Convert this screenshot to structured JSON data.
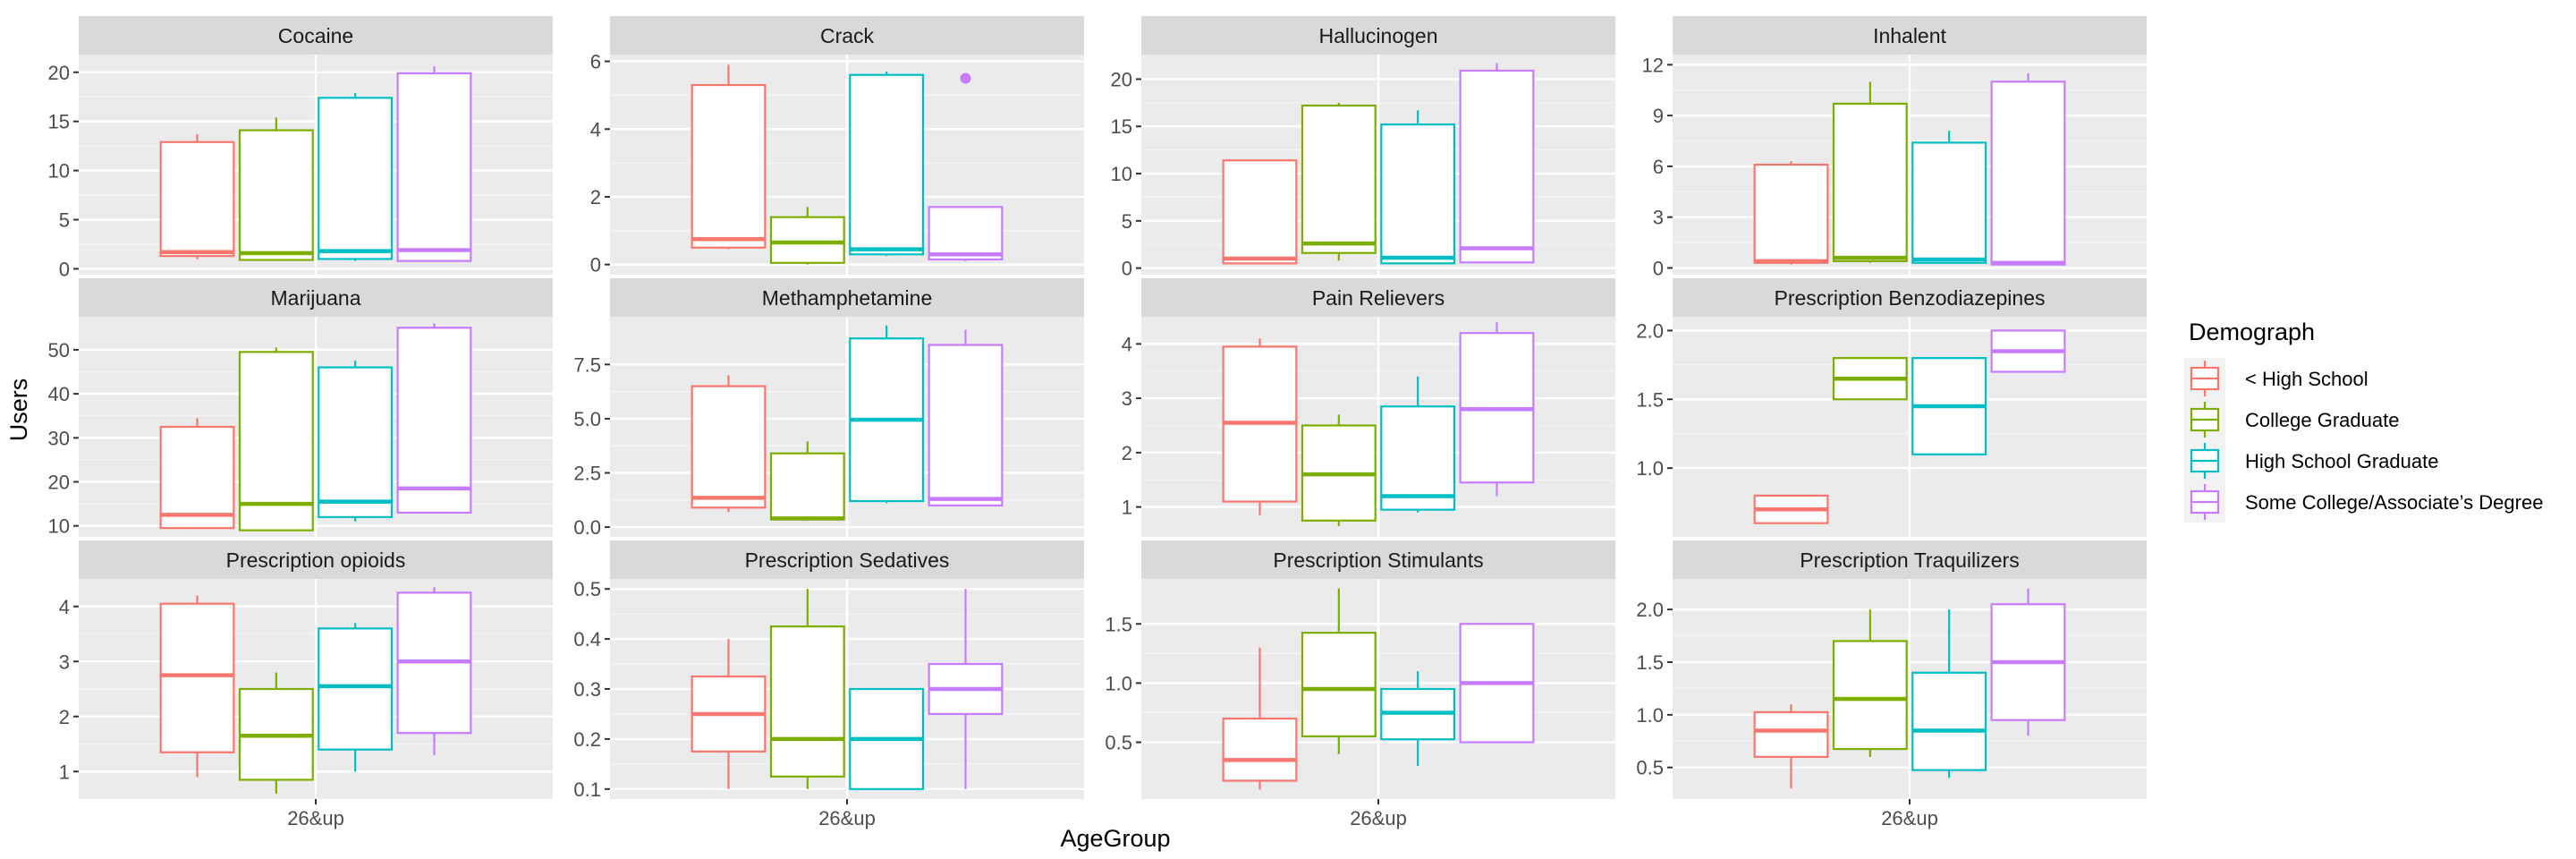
{
  "chart_data": {
    "type": "box",
    "xlabel": "AgeGroup",
    "ylabel": "Users",
    "x_tick": "26&up",
    "legend": {
      "title": "Demograph",
      "position": "right",
      "entries": [
        {
          "label": "< High School",
          "color": "#F8766D"
        },
        {
          "label": "College Graduate",
          "color": "#7CAE00"
        },
        {
          "label": "High School Graduate",
          "color": "#00BFC4"
        },
        {
          "label": "Some College/Associate’s Degree",
          "color": "#C77CFF"
        }
      ]
    },
    "facets": [
      {
        "title": "Cocaine",
        "ylim": [
          -0.6,
          21.8
        ],
        "ticks": [
          0,
          5,
          10,
          15,
          20
        ],
        "tick_labels": [
          "0",
          "5",
          "10",
          "15",
          "20"
        ],
        "boxes": [
          {
            "min": 1.0,
            "q1": 1.3,
            "median": 1.7,
            "q3": 12.9,
            "max": 13.7
          },
          {
            "min": 0.9,
            "q1": 0.9,
            "median": 1.6,
            "q3": 14.1,
            "max": 15.4
          },
          {
            "min": 0.8,
            "q1": 1.0,
            "median": 1.8,
            "q3": 17.4,
            "max": 17.9
          },
          {
            "min": 0.8,
            "q1": 0.8,
            "median": 1.9,
            "q3": 19.9,
            "max": 20.6
          }
        ]
      },
      {
        "title": "Crack",
        "ylim": [
          -0.3,
          6.2
        ],
        "ticks": [
          0,
          2,
          4,
          6
        ],
        "tick_labels": [
          "0",
          "2",
          "4",
          "6"
        ],
        "boxes": [
          {
            "min": 0.45,
            "q1": 0.5,
            "median": 0.75,
            "q3": 5.3,
            "max": 5.9
          },
          {
            "min": 0.0,
            "q1": 0.05,
            "median": 0.65,
            "q3": 1.4,
            "max": 1.7
          },
          {
            "min": 0.25,
            "q1": 0.3,
            "median": 0.45,
            "q3": 5.6,
            "max": 5.7
          },
          {
            "min": 0.1,
            "q1": 0.15,
            "median": 0.3,
            "q3": 1.7,
            "max": 1.7,
            "outliers": [
              5.5
            ]
          }
        ]
      },
      {
        "title": "Hallucinogen",
        "ylim": [
          -0.7,
          22.6
        ],
        "ticks": [
          0,
          5,
          10,
          15,
          20
        ],
        "tick_labels": [
          "0",
          "5",
          "10",
          "15",
          "20"
        ],
        "boxes": [
          {
            "min": 0.5,
            "q1": 0.5,
            "median": 1.0,
            "q3": 11.4,
            "max": 11.4
          },
          {
            "min": 0.8,
            "q1": 1.6,
            "median": 2.6,
            "q3": 17.2,
            "max": 17.5
          },
          {
            "min": 0.5,
            "q1": 0.5,
            "median": 1.1,
            "q3": 15.2,
            "max": 16.7
          },
          {
            "min": 0.6,
            "q1": 0.6,
            "median": 2.1,
            "q3": 20.9,
            "max": 21.7
          }
        ]
      },
      {
        "title": "Inhalent",
        "ylim": [
          -0.4,
          12.6
        ],
        "ticks": [
          0,
          3,
          6,
          9,
          12
        ],
        "tick_labels": [
          "0",
          "3",
          "6",
          "9",
          "12"
        ],
        "boxes": [
          {
            "min": 0.2,
            "q1": 0.3,
            "median": 0.4,
            "q3": 6.1,
            "max": 6.3
          },
          {
            "min": 0.3,
            "q1": 0.4,
            "median": 0.6,
            "q3": 9.7,
            "max": 11.0
          },
          {
            "min": 0.3,
            "q1": 0.3,
            "median": 0.5,
            "q3": 7.4,
            "max": 8.1
          },
          {
            "min": 0.2,
            "q1": 0.2,
            "median": 0.3,
            "q3": 11.0,
            "max": 11.5
          }
        ]
      },
      {
        "title": "Marijuana",
        "ylim": [
          7.5,
          57.5
        ],
        "ticks": [
          10,
          20,
          30,
          40,
          50
        ],
        "tick_labels": [
          "10",
          "20",
          "30",
          "40",
          "50"
        ],
        "boxes": [
          {
            "min": 9.5,
            "q1": 9.5,
            "median": 12.5,
            "q3": 32.5,
            "max": 34.5
          },
          {
            "min": 9.0,
            "q1": 9.0,
            "median": 15.0,
            "q3": 49.5,
            "max": 50.5
          },
          {
            "min": 11.0,
            "q1": 12.0,
            "median": 15.5,
            "q3": 46.0,
            "max": 47.5
          },
          {
            "min": 13.0,
            "q1": 13.0,
            "median": 18.5,
            "q3": 55.0,
            "max": 56.0
          }
        ]
      },
      {
        "title": "Methamphetamine",
        "ylim": [
          -0.45,
          9.7
        ],
        "ticks": [
          0,
          2.5,
          5,
          7.5
        ],
        "tick_labels": [
          "0.0",
          "2.5",
          "5.0",
          "7.5"
        ],
        "boxes": [
          {
            "min": 0.7,
            "q1": 0.9,
            "median": 1.35,
            "q3": 6.5,
            "max": 7.0
          },
          {
            "min": 0.3,
            "q1": 0.35,
            "median": 0.4,
            "q3": 3.4,
            "max": 3.95
          },
          {
            "min": 1.1,
            "q1": 1.2,
            "median": 4.95,
            "q3": 8.7,
            "max": 9.3
          },
          {
            "min": 1.0,
            "q1": 1.0,
            "median": 1.3,
            "q3": 8.4,
            "max": 9.1
          }
        ]
      },
      {
        "title": "Pain Relievers",
        "ylim": [
          0.45,
          4.5
        ],
        "ticks": [
          1,
          2,
          3,
          4
        ],
        "tick_labels": [
          "1",
          "2",
          "3",
          "4"
        ],
        "boxes": [
          {
            "min": 0.85,
            "q1": 1.1,
            "median": 2.55,
            "q3": 3.95,
            "max": 4.1
          },
          {
            "min": 0.65,
            "q1": 0.75,
            "median": 1.6,
            "q3": 2.5,
            "max": 2.7
          },
          {
            "min": 0.9,
            "q1": 0.95,
            "median": 1.2,
            "q3": 2.85,
            "max": 3.4
          },
          {
            "min": 1.2,
            "q1": 1.45,
            "median": 2.8,
            "q3": 4.2,
            "max": 4.4
          }
        ]
      },
      {
        "title": "Prescription Benzodiazepines",
        "ylim": [
          0.5,
          2.1
        ],
        "ticks": [
          1.0,
          1.5,
          2.0
        ],
        "tick_labels": [
          "1.0",
          "1.5",
          "2.0"
        ],
        "boxes": [
          {
            "min": 0.6,
            "q1": 0.6,
            "median": 0.7,
            "q3": 0.8,
            "max": 0.8
          },
          {
            "min": 1.5,
            "q1": 1.5,
            "median": 1.65,
            "q3": 1.8,
            "max": 1.8
          },
          {
            "min": 1.1,
            "q1": 1.1,
            "median": 1.45,
            "q3": 1.8,
            "max": 1.8
          },
          {
            "min": 1.7,
            "q1": 1.7,
            "median": 1.85,
            "q3": 2.0,
            "max": 2.0
          }
        ]
      },
      {
        "title": "Prescription opioids",
        "ylim": [
          0.5,
          4.5
        ],
        "ticks": [
          1,
          2,
          3,
          4
        ],
        "tick_labels": [
          "1",
          "2",
          "3",
          "4"
        ],
        "boxes": [
          {
            "min": 0.9,
            "q1": 1.35,
            "median": 2.75,
            "q3": 4.05,
            "max": 4.2
          },
          {
            "min": 0.6,
            "q1": 0.85,
            "median": 1.65,
            "q3": 2.5,
            "max": 2.8
          },
          {
            "min": 1.0,
            "q1": 1.4,
            "median": 2.55,
            "q3": 3.6,
            "max": 3.7
          },
          {
            "min": 1.3,
            "q1": 1.7,
            "median": 3.0,
            "q3": 4.25,
            "max": 4.35
          }
        ]
      },
      {
        "title": "Prescription Sedatives",
        "ylim": [
          0.08,
          0.52
        ],
        "ticks": [
          0.1,
          0.2,
          0.3,
          0.4,
          0.5
        ],
        "tick_labels": [
          "0.1",
          "0.2",
          "0.3",
          "0.4",
          "0.5"
        ],
        "boxes": [
          {
            "min": 0.1,
            "q1": 0.175,
            "median": 0.25,
            "q3": 0.325,
            "max": 0.4
          },
          {
            "min": 0.1,
            "q1": 0.125,
            "median": 0.2,
            "q3": 0.425,
            "max": 0.5
          },
          {
            "min": 0.1,
            "q1": 0.1,
            "median": 0.2,
            "q3": 0.3,
            "max": 0.3
          },
          {
            "min": 0.1,
            "q1": 0.25,
            "median": 0.3,
            "q3": 0.35,
            "max": 0.5
          }
        ]
      },
      {
        "title": "Prescription Stimulants",
        "ylim": [
          0.02,
          1.88
        ],
        "ticks": [
          0.5,
          1.0,
          1.5
        ],
        "tick_labels": [
          "0.5",
          "1.0",
          "1.5"
        ],
        "boxes": [
          {
            "min": 0.1,
            "q1": 0.175,
            "median": 0.35,
            "q3": 0.7,
            "max": 1.3
          },
          {
            "min": 0.4,
            "q1": 0.55,
            "median": 0.95,
            "q3": 1.425,
            "max": 1.8
          },
          {
            "min": 0.3,
            "q1": 0.525,
            "median": 0.75,
            "q3": 0.95,
            "max": 1.1
          },
          {
            "min": 0.5,
            "q1": 0.5,
            "median": 1.0,
            "q3": 1.5,
            "max": 1.5
          }
        ]
      },
      {
        "title": "Prescription Traquilizers",
        "ylim": [
          0.2,
          2.29
        ],
        "ticks": [
          0.5,
          1.0,
          1.5,
          2.0
        ],
        "tick_labels": [
          "0.5",
          "1.0",
          "1.5",
          "2.0"
        ],
        "boxes": [
          {
            "min": 0.3,
            "q1": 0.6,
            "median": 0.85,
            "q3": 1.025,
            "max": 1.1
          },
          {
            "min": 0.6,
            "q1": 0.675,
            "median": 1.15,
            "q3": 1.7,
            "max": 2.0
          },
          {
            "min": 0.4,
            "q1": 0.475,
            "median": 0.85,
            "q3": 1.4,
            "max": 2.0
          },
          {
            "min": 0.8,
            "q1": 0.95,
            "median": 1.5,
            "q3": 2.05,
            "max": 2.2
          }
        ]
      }
    ]
  }
}
